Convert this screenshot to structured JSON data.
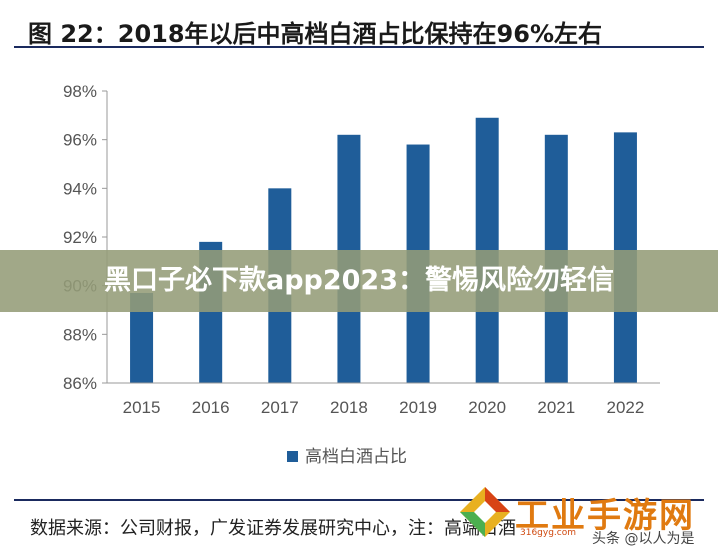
{
  "title": "图 22：2018年以后中高档白酒占比保持在96%左右",
  "source": "数据来源：公司财报，广发证券发展研究中心，注：高端白酒",
  "banner": "黑口子必下款app2023：警惕风险勿轻信",
  "logo": {
    "text": "工业手游网",
    "sub": "316gyg.com"
  },
  "watermark": "头条 @以人为是",
  "colors": {
    "bar": "#1f5d99",
    "axis": "#999999",
    "text": "#555555"
  },
  "chart_data": {
    "type": "bar",
    "categories": [
      "2015",
      "2016",
      "2017",
      "2018",
      "2019",
      "2020",
      "2021",
      "2022"
    ],
    "series": [
      {
        "name": "高档白酒占比",
        "values": [
          89.7,
          91.8,
          94.0,
          96.2,
          95.8,
          96.9,
          96.2,
          96.3
        ]
      }
    ],
    "y_ticks": [
      "86%",
      "88%",
      "90%",
      "92%",
      "94%",
      "96%",
      "98%"
    ],
    "ylim": [
      86,
      98
    ],
    "legend_position": "bottom-center",
    "grid": false
  }
}
